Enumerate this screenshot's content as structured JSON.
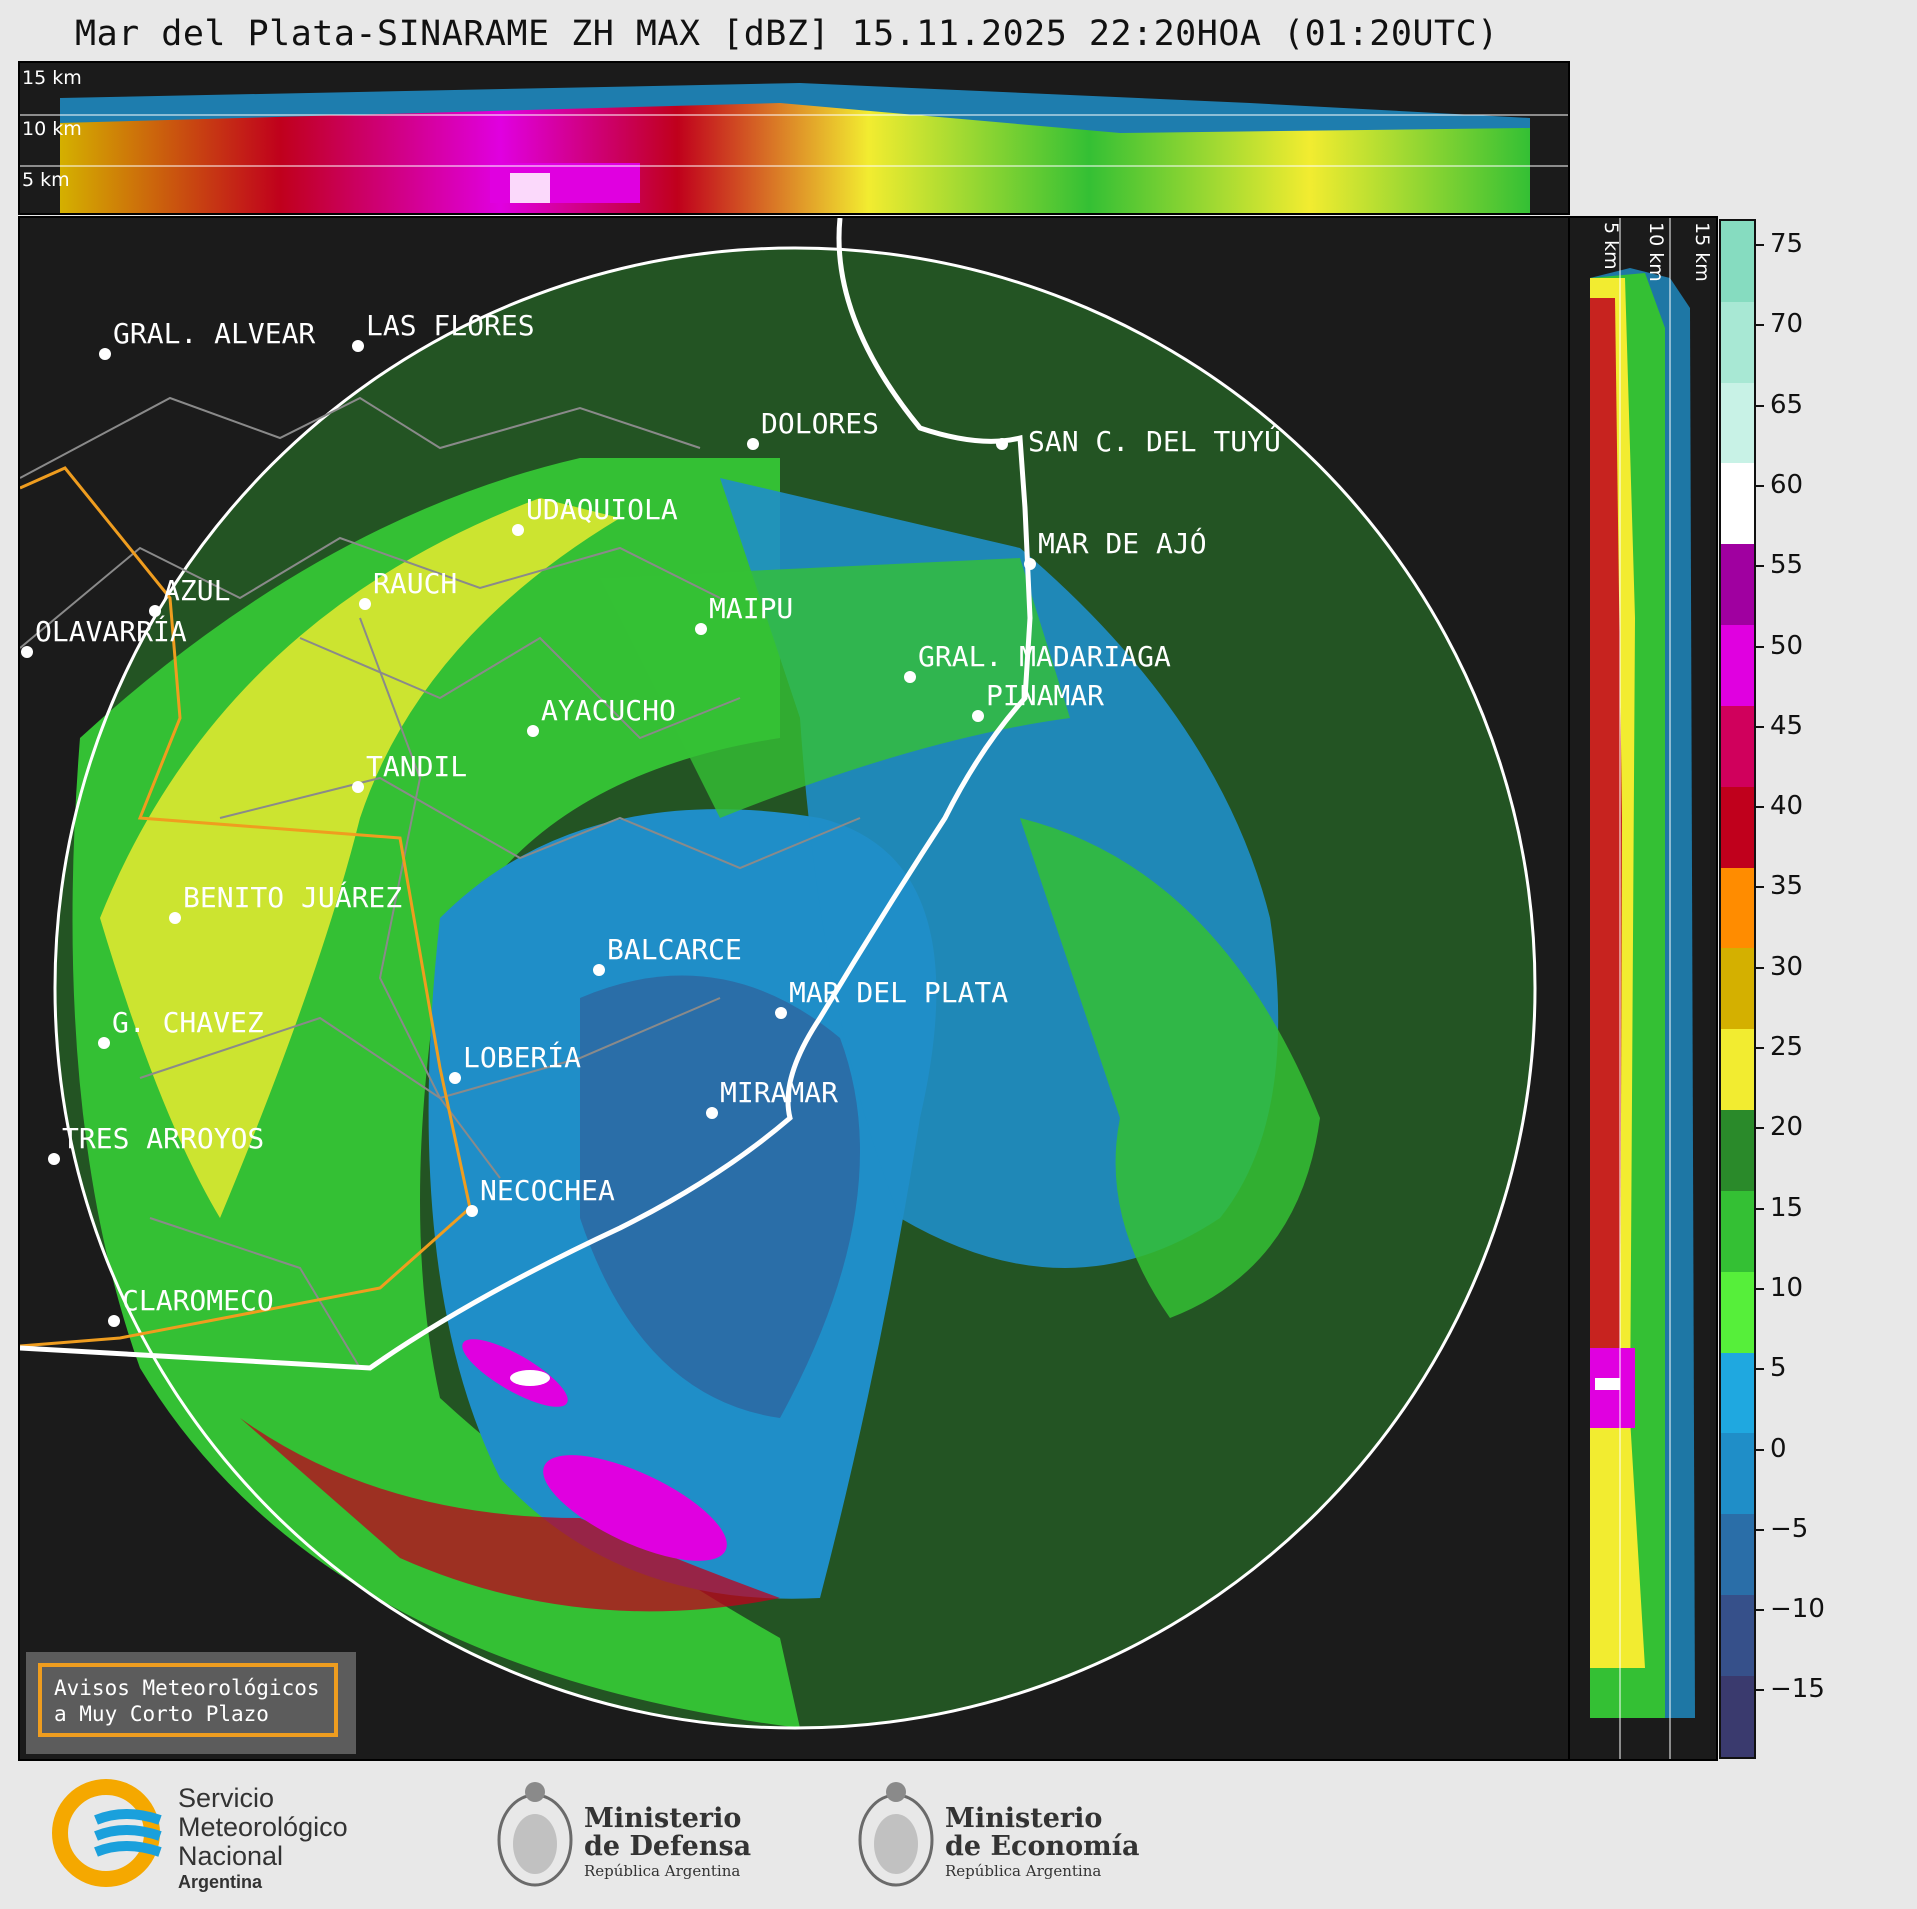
{
  "title": "Mar del Plata-SINARAME ZH MAX [dBZ] 15.11.2025 22:20HOA (01:20UTC)",
  "top_panel": {
    "altitude_labels": [
      "15 km",
      "10 km",
      "5 km"
    ]
  },
  "side_panel": {
    "altitude_labels": [
      "5 km",
      "10 km",
      "15 km"
    ]
  },
  "colorbar": {
    "ticks": [
      "75",
      "70",
      "65",
      "60",
      "55",
      "50",
      "45",
      "40",
      "35",
      "30",
      "25",
      "20",
      "15",
      "10",
      "5",
      "0",
      "−5",
      "−10",
      "−15"
    ],
    "colors": [
      "#86dcc0",
      "#a8e8d4",
      "#c8f2e6",
      "#ffffff",
      "#a000a0",
      "#e000e0",
      "#d0005c",
      "#c0001c",
      "#ff8c00",
      "#d4b000",
      "#f2ec30",
      "#2a8a2a",
      "#34c034",
      "#56ef3a",
      "#1fa8e0",
      "#1f8ec8",
      "#2a6ea8",
      "#36508a",
      "#3a3a6e"
    ]
  },
  "cities": [
    {
      "name": "GRAL. ALVEAR"
    },
    {
      "name": "LAS FLORES"
    },
    {
      "name": "DOLORES"
    },
    {
      "name": "SAN C. DEL TUYÚ"
    },
    {
      "name": "UDAQUIOLA"
    },
    {
      "name": "MAR DE AJÓ"
    },
    {
      "name": "AZUL"
    },
    {
      "name": "RAUCH"
    },
    {
      "name": "MAIPU"
    },
    {
      "name": "OLAVARRÍA"
    },
    {
      "name": "GRAL. MADARIAGA"
    },
    {
      "name": "AYACUCHO"
    },
    {
      "name": "PINAMAR"
    },
    {
      "name": "TANDIL"
    },
    {
      "name": "BENITO JUÁREZ"
    },
    {
      "name": "BALCARCE"
    },
    {
      "name": "MAR DEL PLATA"
    },
    {
      "name": "G. CHAVEZ"
    },
    {
      "name": "LOBERÍA"
    },
    {
      "name": "MIRAMAR"
    },
    {
      "name": "TRES ARROYOS"
    },
    {
      "name": "NECOCHEA"
    },
    {
      "name": "CLAROMECO"
    }
  ],
  "warning_box": {
    "line1": "Avisos Meteorológicos",
    "line2": "a Muy Corto Plazo"
  },
  "logos": {
    "smn": {
      "line1": "Servicio",
      "line2": "Meteorológico",
      "line3": "Nacional",
      "sub": "Argentina"
    },
    "defensa": {
      "line1": "Ministerio",
      "line2": "de Defensa",
      "sub": "República Argentina"
    },
    "economia": {
      "line1": "Ministerio",
      "line2": "de Economía",
      "sub": "República Argentina"
    }
  }
}
